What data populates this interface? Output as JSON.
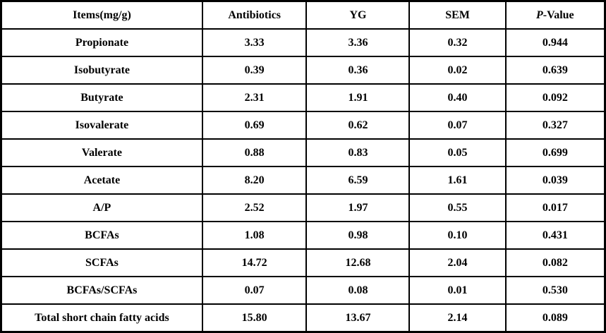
{
  "table": {
    "header": {
      "items": "Items(mg/g)",
      "antibiotics": "Antibiotics",
      "yg": "YG",
      "sem": "SEM",
      "p_italic": "P",
      "p_rest": "-Value"
    },
    "rows": [
      {
        "item": "Propionate",
        "values": [
          "3.33",
          "3.36",
          "0.32",
          "0.944"
        ]
      },
      {
        "item": "Isobutyrate",
        "values": [
          "0.39",
          "0.36",
          "0.02",
          "0.639"
        ]
      },
      {
        "item": "Butyrate",
        "values": [
          "2.31",
          "1.91",
          "0.40",
          "0.092"
        ]
      },
      {
        "item": "Isovalerate",
        "values": [
          "0.69",
          "0.62",
          "0.07",
          "0.327"
        ]
      },
      {
        "item": "Valerate",
        "values": [
          "0.88",
          "0.83",
          "0.05",
          "0.699"
        ]
      },
      {
        "item": "Acetate",
        "values": [
          "8.20",
          "6.59",
          "1.61",
          "0.039"
        ]
      },
      {
        "item": "A/P",
        "values": [
          "2.52",
          "1.97",
          "0.55",
          "0.017"
        ]
      },
      {
        "item": "BCFAs",
        "values": [
          "1.08",
          "0.98",
          "0.10",
          "0.431"
        ]
      },
      {
        "item": "SCFAs",
        "values": [
          "14.72",
          "12.68",
          "2.04",
          "0.082"
        ]
      },
      {
        "item": "BCFAs/SCFAs",
        "values": [
          "0.07",
          "0.08",
          "0.01",
          "0.530"
        ]
      },
      {
        "item": "Total short chain fatty acids",
        "values": [
          "15.80",
          "13.67",
          "2.14",
          "0.089"
        ]
      }
    ]
  }
}
